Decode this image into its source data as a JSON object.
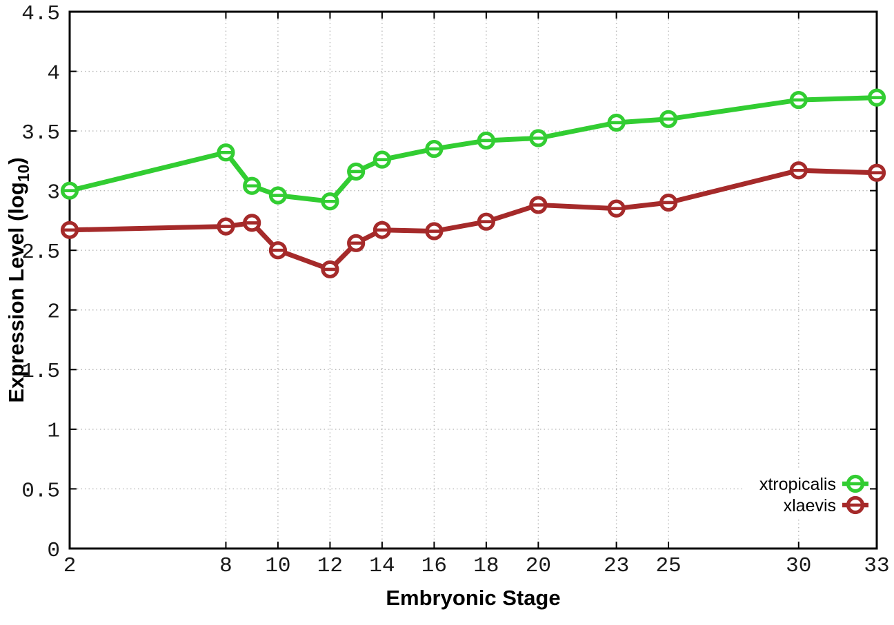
{
  "chart_data": {
    "type": "line",
    "title": "",
    "xlabel": "Embryonic Stage",
    "ylabel": "Expression Level (log10)",
    "ylabel_parts": {
      "prefix": "Expression Level (log",
      "subscript": "10",
      "suffix": ")"
    },
    "xlim": [
      2,
      33
    ],
    "ylim": [
      0,
      4.5
    ],
    "grid": true,
    "legend_position": "bottom-right-inside",
    "marker": "circle-with-horizontal-bar",
    "x": [
      2,
      8,
      9,
      10,
      12,
      13,
      14,
      16,
      18,
      20,
      23,
      25,
      30,
      33
    ],
    "series": [
      {
        "name": "xtropicalis",
        "color": "#32CD32",
        "values": [
          3.0,
          3.32,
          3.04,
          2.96,
          2.91,
          3.16,
          3.26,
          3.35,
          3.42,
          3.44,
          3.57,
          3.6,
          3.76,
          3.78
        ]
      },
      {
        "name": "xlaevis",
        "color": "#A52A2A",
        "values": [
          2.67,
          2.7,
          2.73,
          2.5,
          2.34,
          2.56,
          2.67,
          2.66,
          2.74,
          2.88,
          2.85,
          2.9,
          3.17,
          3.15
        ]
      }
    ],
    "x_ticks": [
      2,
      8,
      10,
      12,
      14,
      16,
      18,
      20,
      23,
      25,
      30,
      33
    ],
    "x_tick_labels": [
      "2",
      "8",
      "10",
      "12",
      "14",
      "16",
      "18",
      "20",
      "23",
      "25",
      "30",
      "33"
    ],
    "y_ticks": [
      0,
      0.5,
      1,
      1.5,
      2,
      2.5,
      3,
      3.5,
      4,
      4.5
    ],
    "y_tick_labels": [
      "0",
      "0.5",
      "1",
      "1.5",
      "2",
      "2.5",
      "3",
      "3.5",
      "4",
      "4.5"
    ],
    "colors": {
      "background": "#ffffff",
      "border": "#000000",
      "grid": "#b8b8b8",
      "tick_text": "#1a1a1a",
      "label_text": "#000000"
    }
  }
}
